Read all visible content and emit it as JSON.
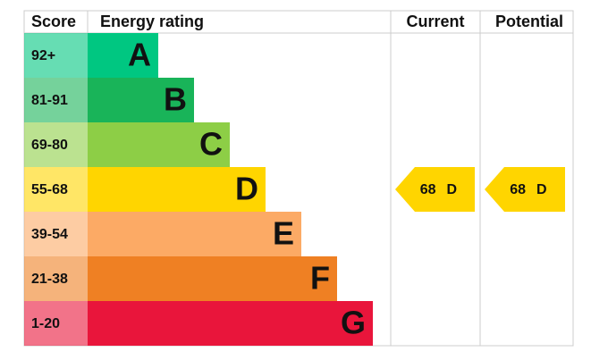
{
  "header": {
    "score": "Score",
    "rating": "Energy rating",
    "current": "Current",
    "potential": "Potential"
  },
  "bands": [
    {
      "range": "92+",
      "letter": "A",
      "color": "#00c781"
    },
    {
      "range": "81-91",
      "letter": "B",
      "color": "#19b459"
    },
    {
      "range": "69-80",
      "letter": "C",
      "color": "#8dce46"
    },
    {
      "range": "55-68",
      "letter": "D",
      "color": "#ffd500"
    },
    {
      "range": "39-54",
      "letter": "E",
      "color": "#fcaa65"
    },
    {
      "range": "21-38",
      "letter": "F",
      "color": "#ef8023"
    },
    {
      "range": "1-20",
      "letter": "G",
      "color": "#e9153b"
    }
  ],
  "current": {
    "score": 68,
    "letter": "D"
  },
  "potential": {
    "score": 68,
    "letter": "D"
  }
}
